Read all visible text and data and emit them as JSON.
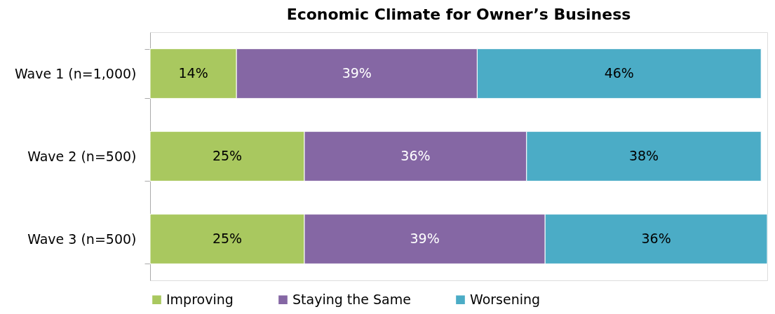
{
  "chart_data": {
    "type": "bar",
    "title": "Economic Climate for Owner’s Business",
    "orientation": "horizontal",
    "stacked": true,
    "categories": [
      "Wave 1 (n=1,000)",
      "Wave 2 (n=500)",
      "Wave 3 (n=500)"
    ],
    "series": [
      {
        "name": "Improving",
        "color": "#a9c85f",
        "values": [
          14,
          25,
          25
        ],
        "value_labels": [
          "14%",
          "25%",
          "25%"
        ]
      },
      {
        "name": "Staying the Same",
        "color": "#8567a4",
        "values": [
          39,
          36,
          39
        ],
        "value_labels": [
          "39%",
          "36%",
          "39%"
        ]
      },
      {
        "name": "Worsening",
        "color": "#4bacc6",
        "values": [
          46,
          38,
          36
        ],
        "value_labels": [
          "46%",
          "38%",
          "36%"
        ]
      }
    ],
    "xlim": [
      0,
      100
    ],
    "tick_labels": "y",
    "grid": false,
    "legend": "bottom"
  }
}
